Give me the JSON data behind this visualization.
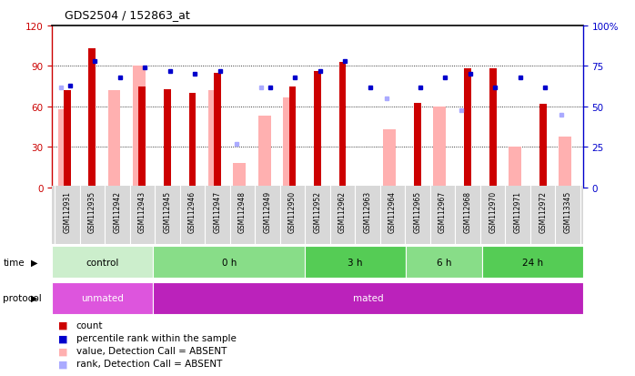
{
  "title": "GDS2504 / 152863_at",
  "samples": [
    "GSM112931",
    "GSM112935",
    "GSM112942",
    "GSM112943",
    "GSM112945",
    "GSM112946",
    "GSM112947",
    "GSM112948",
    "GSM112949",
    "GSM112950",
    "GSM112952",
    "GSM112962",
    "GSM112963",
    "GSM112964",
    "GSM112965",
    "GSM112967",
    "GSM112968",
    "GSM112970",
    "GSM112971",
    "GSM112972",
    "GSM113345"
  ],
  "red_bars": [
    72,
    103,
    0,
    75,
    73,
    70,
    85,
    0,
    0,
    75,
    86,
    93,
    0,
    0,
    63,
    0,
    88,
    88,
    0,
    62,
    0
  ],
  "pink_bars": [
    58,
    0,
    72,
    90,
    0,
    0,
    72,
    18,
    53,
    67,
    0,
    0,
    0,
    43,
    0,
    60,
    0,
    0,
    30,
    0,
    38
  ],
  "blue_squares": [
    63,
    78,
    68,
    74,
    72,
    70,
    72,
    0,
    62,
    68,
    72,
    78,
    62,
    0,
    62,
    68,
    70,
    62,
    68,
    62,
    0
  ],
  "light_blue_squares": [
    62,
    0,
    0,
    0,
    0,
    0,
    0,
    27,
    62,
    0,
    0,
    0,
    0,
    55,
    0,
    0,
    48,
    0,
    0,
    0,
    45
  ],
  "time_groups": [
    {
      "label": "control",
      "start": 0,
      "end": 4,
      "color": "#cceecc"
    },
    {
      "label": "0 h",
      "start": 4,
      "end": 10,
      "color": "#88dd88"
    },
    {
      "label": "3 h",
      "start": 10,
      "end": 14,
      "color": "#55cc55"
    },
    {
      "label": "6 h",
      "start": 14,
      "end": 17,
      "color": "#88dd88"
    },
    {
      "label": "24 h",
      "start": 17,
      "end": 21,
      "color": "#55cc55"
    }
  ],
  "protocol_groups": [
    {
      "label": "unmated",
      "start": 0,
      "end": 4,
      "color": "#dd55dd"
    },
    {
      "label": "mated",
      "start": 4,
      "end": 21,
      "color": "#bb22bb"
    }
  ],
  "ylim_left": [
    0,
    120
  ],
  "ylim_right": [
    0,
    100
  ],
  "yticks_left": [
    0,
    30,
    60,
    90,
    120
  ],
  "yticks_right": [
    0,
    25,
    50,
    75,
    100
  ],
  "ytick_labels_right": [
    "0",
    "25",
    "50",
    "75",
    "100%"
  ],
  "left_axis_color": "#cc0000",
  "right_axis_color": "#0000cc",
  "legend_items": [
    {
      "color": "#cc0000",
      "label": "count"
    },
    {
      "color": "#0000cc",
      "label": "percentile rank within the sample"
    },
    {
      "color": "#ffb0b0",
      "label": "value, Detection Call = ABSENT"
    },
    {
      "color": "#aaaaff",
      "label": "rank, Detection Call = ABSENT"
    }
  ]
}
